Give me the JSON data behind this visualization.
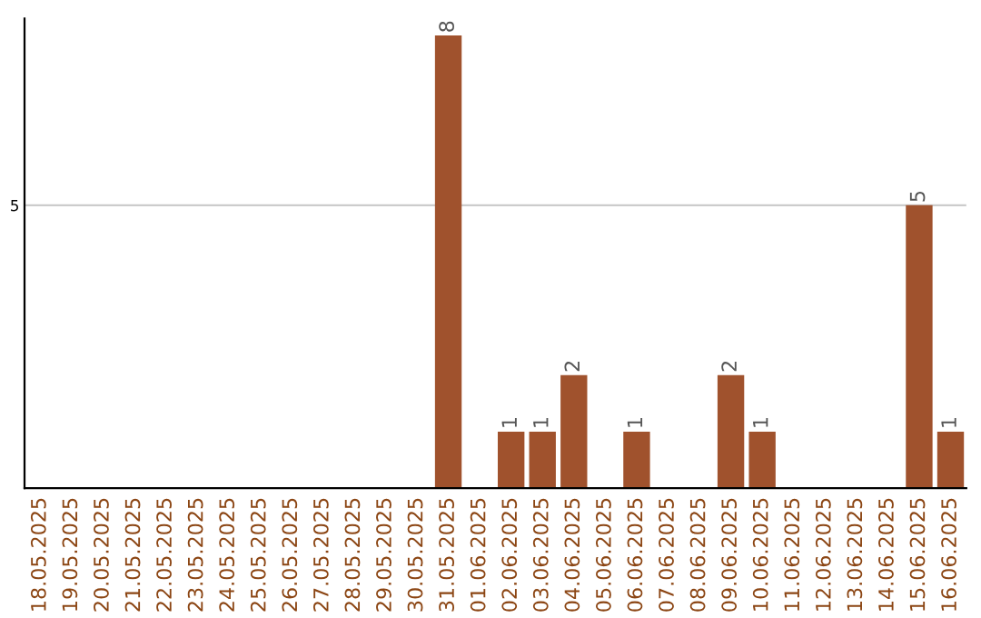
{
  "chart_data": {
    "type": "bar",
    "ylim": [
      0,
      8.3
    ],
    "categories": [
      "18.05.2025",
      "19.05.2025",
      "20.05.2025",
      "21.05.2025",
      "22.05.2025",
      "23.05.2025",
      "24.05.2025",
      "25.05.2025",
      "26.05.2025",
      "27.05.2025",
      "28.05.2025",
      "29.05.2025",
      "30.05.2025",
      "31.05.2025",
      "01.06.2025",
      "02.06.2025",
      "03.06.2025",
      "04.06.2025",
      "05.06.2025",
      "06.06.2025",
      "07.06.2025",
      "08.06.2025",
      "09.06.2025",
      "10.06.2025",
      "11.06.2025",
      "12.06.2025",
      "13.06.2025",
      "14.06.2025",
      "15.06.2025",
      "16.06.2025"
    ],
    "values": [
      null,
      null,
      null,
      null,
      null,
      null,
      null,
      null,
      null,
      null,
      null,
      null,
      null,
      8,
      null,
      1,
      1,
      2,
      null,
      1,
      null,
      null,
      2,
      1,
      null,
      null,
      null,
      null,
      5,
      1
    ],
    "yticks": [
      5
    ],
    "grid": "y",
    "value_labels": [
      null,
      null,
      null,
      null,
      null,
      null,
      null,
      null,
      null,
      null,
      null,
      null,
      null,
      "8",
      null,
      "1",
      "1",
      "2",
      null,
      "1",
      null,
      null,
      "2",
      "1",
      null,
      null,
      null,
      null,
      "5",
      "1"
    ],
    "color": "#a0522d",
    "legend": false
  }
}
